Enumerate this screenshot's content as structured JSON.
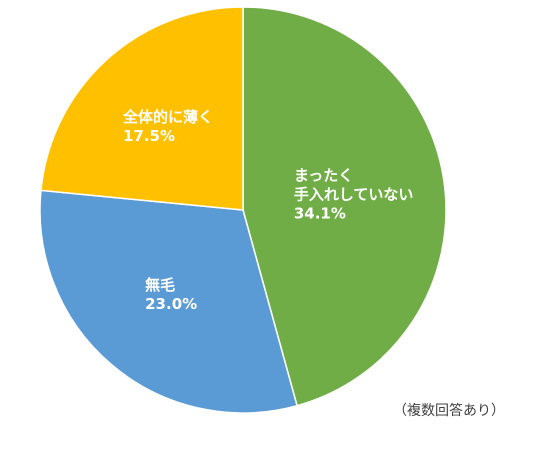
{
  "chart_data": {
    "type": "pie",
    "categories": [
      "まったく\n手入れしていない",
      "無毛",
      "全体的に薄く"
    ],
    "values": [
      34.1,
      23.0,
      17.5
    ],
    "value_labels": [
      "34.1%",
      "23.0%",
      "17.5%"
    ],
    "colors": [
      "#70ad47",
      "#5b9bd5",
      "#ffc000"
    ],
    "annotation": "（複数回答あり）"
  }
}
